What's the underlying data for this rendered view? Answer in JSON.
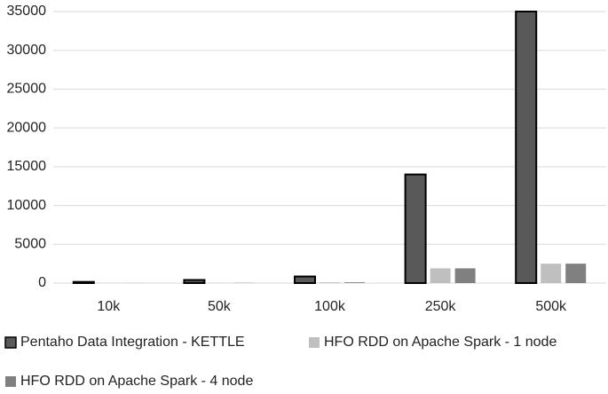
{
  "chart_data": {
    "type": "bar",
    "categories": [
      "10k",
      "50k",
      "100k",
      "250k",
      "500k"
    ],
    "series": [
      {
        "name": "Pentaho Data Integration - KETTLE",
        "color": "#595959",
        "values": [
          150,
          400,
          850,
          14000,
          35000
        ]
      },
      {
        "name": "HFO RDD on Apache Spark - 1 node",
        "color": "#bfbfbf",
        "values": [
          10,
          30,
          100,
          1900,
          2500
        ]
      },
      {
        "name": "HFO RDD on Apache Spark - 4 node",
        "color": "#808080",
        "values": [
          10,
          30,
          100,
          1900,
          2500
        ]
      }
    ],
    "ylim": [
      0,
      35000
    ],
    "yticks": [
      0,
      5000,
      10000,
      15000,
      20000,
      25000,
      30000,
      35000
    ],
    "grid": true,
    "legend": "bottom"
  }
}
